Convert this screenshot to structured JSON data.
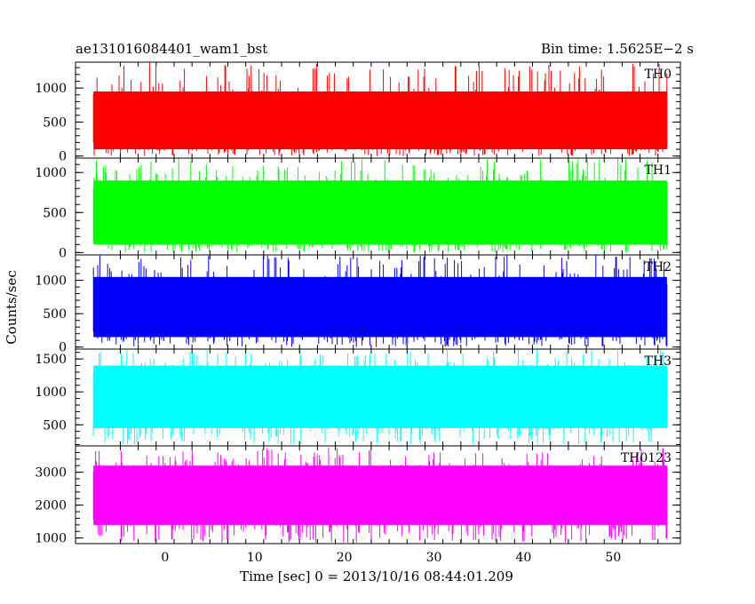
{
  "header": {
    "left": "ae131016084401_wam1_bst",
    "right": "Bin time: 1.5625E−2 s"
  },
  "axes": {
    "xlabel": "Time [sec] 0 = 2013/10/16 08:44:01.209",
    "ylabel": "Counts/sec"
  },
  "colors": {
    "TH0": "#ff0000",
    "TH1": "#00ff00",
    "TH2": "#0000ff",
    "TH3": "#00ffff",
    "TH0123": "#ff00ff",
    "axes": "#000000",
    "background": "#ffffff"
  },
  "chart_data": {
    "type": "line",
    "x": {
      "start": -8,
      "end": 56,
      "range": [
        -10,
        57.5
      ],
      "ticks": [
        0,
        10,
        20,
        30,
        40,
        50
      ],
      "tick_labels": [
        "0",
        "10",
        "20",
        "30",
        "40",
        "50"
      ],
      "bin_time": 0.015625
    },
    "grid": false,
    "panels": [
      {
        "label": "TH0",
        "ylim": [
          -30,
          1380
        ],
        "yticks": [
          0,
          500,
          1000
        ],
        "ytick_labels": [
          "0",
          "500",
          "1000"
        ],
        "typical_band": [
          100,
          950
        ],
        "peak_max": 1380,
        "floor": 0
      },
      {
        "label": "TH1",
        "ylim": [
          -30,
          1180
        ],
        "yticks": [
          0,
          500,
          1000
        ],
        "ytick_labels": [
          "0",
          "500",
          "1000"
        ],
        "typical_band": [
          100,
          900
        ],
        "peak_max": 1180,
        "floor": 0
      },
      {
        "label": "TH2",
        "ylim": [
          -30,
          1380
        ],
        "yticks": [
          0,
          500,
          1000
        ],
        "ytick_labels": [
          "0",
          "500",
          "1000"
        ],
        "typical_band": [
          150,
          1050
        ],
        "peak_max": 1380,
        "floor": 0
      },
      {
        "label": "TH3",
        "ylim": [
          180,
          1650
        ],
        "yticks": [
          500,
          1000,
          1500
        ],
        "ytick_labels": [
          "500",
          "1000",
          "1500"
        ],
        "typical_band": [
          450,
          1400
        ],
        "peak_max": 1650,
        "floor": 200
      },
      {
        "label": "TH0123",
        "ylim": [
          830,
          3800
        ],
        "yticks": [
          1000,
          2000,
          3000
        ],
        "ytick_labels": [
          "1000",
          "2000",
          "3000"
        ],
        "typical_band": [
          1400,
          3200
        ],
        "peak_max": 3750,
        "floor": 850
      }
    ]
  }
}
